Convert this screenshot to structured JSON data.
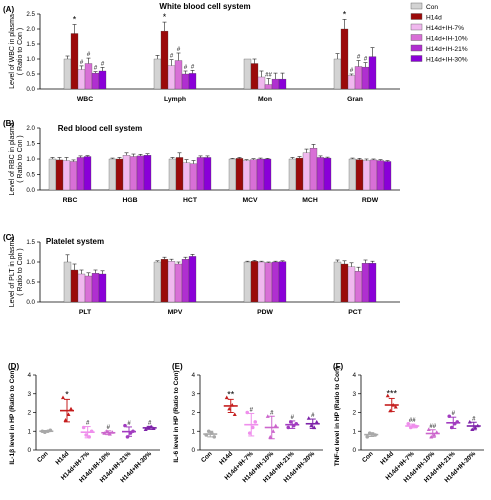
{
  "colors": {
    "con": "#d3d3d3",
    "h14d": "#9b0a0a",
    "ih7": "#f0b8ee",
    "ih10": "#d86fd6",
    "ih21": "#b02fd0",
    "ih30": "#8a00d8",
    "dot_con": "#a8a8a8",
    "dot_h14d": "#c51d1d",
    "dot_ih7": "#ef8fec",
    "dot_ih10": "#cc66cc",
    "dot_ih21": "#a23cc0",
    "dot_ih30": "#7d22a8"
  },
  "legend": [
    "Con",
    "H14d",
    "H14d+IH-7%",
    "H14d+IH-10%",
    "H14d+IH-21%",
    "H14d+IH-30%"
  ],
  "chart_data": [
    {
      "type": "bar",
      "panel": "(A)",
      "title": "White blood cell system",
      "ylabel": "Level of WBC in plasma\n( Ratio to Con )",
      "ylim": [
        0,
        2.5
      ],
      "yticks": [
        "0.0",
        "0.5",
        "1.0",
        "1.5",
        "2.0",
        "2.5"
      ],
      "categories": [
        "WBC",
        "Lymph",
        "Mon",
        "Gran"
      ],
      "series": [
        {
          "name": "Con",
          "values": [
            1.0,
            1.0,
            1.0,
            1.0
          ],
          "errors": [
            0.1,
            0.12,
            0.0,
            0.18
          ]
        },
        {
          "name": "H14d",
          "values": [
            1.85,
            1.93,
            0.85,
            2.0
          ],
          "errors": [
            0.3,
            0.3,
            0.15,
            0.32
          ]
        },
        {
          "name": "H14d+IH-7%",
          "values": [
            0.65,
            0.78,
            0.4,
            0.45
          ],
          "errors": [
            0.12,
            0.2,
            0.2,
            0.05
          ]
        },
        {
          "name": "H14d+IH-10%",
          "values": [
            0.85,
            0.95,
            0.15,
            0.75
          ],
          "errors": [
            0.18,
            0.25,
            0.2,
            0.2
          ]
        },
        {
          "name": "H14d+IH-21%",
          "values": [
            0.53,
            0.5,
            0.33,
            0.73
          ],
          "errors": [
            0.05,
            0.1,
            0.2,
            0.15
          ]
        },
        {
          "name": "H14d+IH-30%",
          "values": [
            0.6,
            0.52,
            0.33,
            1.08
          ],
          "errors": [
            0.12,
            0.1,
            0.2,
            0.3
          ]
        }
      ],
      "annotations": [
        {
          "category": 0,
          "series": 1,
          "text": "*"
        },
        {
          "category": 0,
          "series": 2,
          "text": "#"
        },
        {
          "category": 0,
          "series": 3,
          "text": "#"
        },
        {
          "category": 0,
          "series": 4,
          "text": "#"
        },
        {
          "category": 0,
          "series": 5,
          "text": "#"
        },
        {
          "category": 1,
          "series": 1,
          "text": "*"
        },
        {
          "category": 1,
          "series": 2,
          "text": "#"
        },
        {
          "category": 1,
          "series": 3,
          "text": "#"
        },
        {
          "category": 1,
          "series": 4,
          "text": "#"
        },
        {
          "category": 1,
          "series": 5,
          "text": "#"
        },
        {
          "category": 2,
          "series": 3,
          "text": "##"
        },
        {
          "category": 3,
          "series": 1,
          "text": "*"
        },
        {
          "category": 3,
          "series": 2,
          "text": "#"
        },
        {
          "category": 3,
          "series": 3,
          "text": "#"
        },
        {
          "category": 3,
          "series": 4,
          "text": "#"
        }
      ]
    },
    {
      "type": "bar",
      "panel": "(B)",
      "title": "Red blood  cell system",
      "ylabel": "Level of RBC in plasma\n( Ratio to Con )",
      "ylim": [
        0,
        2.0
      ],
      "yticks": [
        "0.0",
        "0.5",
        "1.0",
        "1.5",
        "2.0"
      ],
      "categories": [
        "RBC",
        "HGB",
        "HCT",
        "MCV",
        "MCH",
        "RDW"
      ],
      "series": [
        {
          "name": "Con",
          "values": [
            1.0,
            1.0,
            1.0,
            1.0,
            1.0,
            1.0
          ],
          "errors": [
            0.05,
            0.03,
            0.05,
            0.02,
            0.05,
            0.03
          ]
        },
        {
          "name": "H14d",
          "values": [
            0.97,
            1.0,
            1.05,
            1.02,
            1.03,
            0.98
          ],
          "errors": [
            0.08,
            0.05,
            0.15,
            0.03,
            0.05,
            0.04
          ]
        },
        {
          "name": "H14d+IH-7%",
          "values": [
            0.95,
            1.12,
            0.88,
            0.95,
            1.2,
            0.95
          ],
          "errors": [
            0.1,
            0.08,
            0.1,
            0.03,
            0.12,
            0.05
          ]
        },
        {
          "name": "H14d+IH-10%",
          "values": [
            0.92,
            1.08,
            0.85,
            0.98,
            1.35,
            0.97
          ],
          "errors": [
            0.05,
            0.08,
            0.1,
            0.03,
            0.12,
            0.03
          ]
        },
        {
          "name": "H14d+IH-21%",
          "values": [
            1.05,
            1.1,
            1.05,
            1.0,
            1.05,
            0.95
          ],
          "errors": [
            0.05,
            0.05,
            0.05,
            0.03,
            0.05,
            0.03
          ]
        },
        {
          "name": "H14d+IH-30%",
          "values": [
            1.08,
            1.12,
            1.05,
            1.0,
            1.03,
            0.92
          ],
          "errors": [
            0.03,
            0.05,
            0.05,
            0.02,
            0.03,
            0.03
          ]
        }
      ],
      "annotations": []
    },
    {
      "type": "bar",
      "panel": "(C)",
      "title": "Platelet system",
      "ylabel": "Level of PLT in plasma\n( Ratio to Con )",
      "ylim": [
        0,
        1.5
      ],
      "yticks": [
        "0.0",
        "0.5",
        "1.0",
        "1.5"
      ],
      "categories": [
        "PLT",
        "MPV",
        "PDW",
        "PCT"
      ],
      "series": [
        {
          "name": "Con",
          "values": [
            1.0,
            1.0,
            1.0,
            1.0
          ],
          "errors": [
            0.18,
            0.03,
            0.02,
            0.05
          ]
        },
        {
          "name": "H14d",
          "values": [
            0.8,
            1.07,
            1.02,
            0.95
          ],
          "errors": [
            0.15,
            0.05,
            0.02,
            0.08
          ]
        },
        {
          "name": "H14d+IH-7%",
          "values": [
            0.7,
            1.02,
            1.0,
            0.88
          ],
          "errors": [
            0.1,
            0.05,
            0.02,
            0.1
          ]
        },
        {
          "name": "H14d+IH-10%",
          "values": [
            0.65,
            0.95,
            0.98,
            0.77
          ],
          "errors": [
            0.08,
            0.05,
            0.02,
            0.1
          ]
        },
        {
          "name": "H14d+IH-21%",
          "values": [
            0.72,
            1.07,
            1.0,
            0.97
          ],
          "errors": [
            0.08,
            0.05,
            0.02,
            0.08
          ]
        },
        {
          "name": "H14d+IH-30%",
          "values": [
            0.7,
            1.14,
            1.01,
            0.97
          ],
          "errors": [
            0.08,
            0.05,
            0.02,
            0.05
          ]
        }
      ],
      "annotations": []
    },
    {
      "type": "scatter",
      "panel": "(D)",
      "ylabel": "IL-1β level in HP (Ratio to Con)",
      "ylim": [
        0,
        4
      ],
      "yticks": [
        "0",
        "1",
        "2",
        "3",
        "4"
      ],
      "categories": [
        "Con",
        "H14d",
        "H14d+IH-7%",
        "H14d+IH-10%",
        "H14d+IH-21%",
        "H14d+IH-30%"
      ],
      "groups": [
        {
          "points": [
            1.0,
            0.95,
            1.0,
            1.05
          ],
          "mean": 1.0,
          "sd": 0.04,
          "annotation": ""
        },
        {
          "points": [
            2.8,
            1.6,
            1.9,
            2.2
          ],
          "mean": 2.1,
          "sd": 0.6,
          "annotation": "*"
        },
        {
          "points": [
            1.2,
            0.8,
            0.7,
            1.0
          ],
          "mean": 0.95,
          "sd": 0.3,
          "annotation": "#"
        },
        {
          "points": [
            0.9,
            1.0,
            0.85,
            0.95
          ],
          "mean": 0.92,
          "sd": 0.1,
          "annotation": "#"
        },
        {
          "points": [
            1.3,
            0.7,
            0.9,
            1.0
          ],
          "mean": 0.98,
          "sd": 0.25,
          "annotation": "#"
        },
        {
          "points": [
            1.1,
            1.2,
            1.25,
            1.15
          ],
          "mean": 1.18,
          "sd": 0.08,
          "annotation": "#"
        }
      ]
    },
    {
      "type": "scatter",
      "panel": "(E)",
      "ylabel": "IL-6 level in HP (Ratio to Con)",
      "ylim": [
        0,
        4
      ],
      "yticks": [
        "0",
        "1",
        "2",
        "3",
        "4"
      ],
      "categories": [
        "Con",
        "H14d",
        "H14d+IH-7%",
        "H14d+IH-10%",
        "H14d+IH-21%",
        "H14d+IH-30%"
      ],
      "groups": [
        {
          "points": [
            0.8,
            1.0,
            0.9,
            0.7
          ],
          "mean": 0.85,
          "sd": 0.15,
          "annotation": ""
        },
        {
          "points": [
            2.8,
            2.2,
            2.4,
            1.9
          ],
          "mean": 2.35,
          "sd": 0.35,
          "annotation": "**"
        },
        {
          "points": [
            2.0,
            0.9,
            1.2,
            1.5
          ],
          "mean": 1.35,
          "sd": 0.6,
          "annotation": "#"
        },
        {
          "points": [
            1.8,
            0.7,
            1.0,
            1.3
          ],
          "mean": 1.2,
          "sd": 0.6,
          "annotation": "#"
        },
        {
          "points": [
            1.2,
            1.5,
            1.3,
            1.4
          ],
          "mean": 1.35,
          "sd": 0.2,
          "annotation": "#"
        },
        {
          "points": [
            1.7,
            1.3,
            1.2,
            1.5
          ],
          "mean": 1.4,
          "sd": 0.25,
          "annotation": "#"
        }
      ]
    },
    {
      "type": "scatter",
      "panel": "(F)",
      "ylabel": "TNF-α level in HP (Ratio to Con)",
      "ylim": [
        0,
        4
      ],
      "yticks": [
        "0",
        "1",
        "2",
        "3",
        "4"
      ],
      "categories": [
        "Con",
        "H14d",
        "H14d+IH-7%",
        "H14d+IH-10%",
        "H14d+IH-21%",
        "H14d+IH-30%"
      ],
      "groups": [
        {
          "points": [
            0.7,
            0.9,
            0.85,
            0.8
          ],
          "mean": 0.82,
          "sd": 0.1,
          "annotation": ""
        },
        {
          "points": [
            2.9,
            2.1,
            2.4,
            2.3
          ],
          "mean": 2.4,
          "sd": 0.35,
          "annotation": "***"
        },
        {
          "points": [
            1.4,
            1.2,
            1.3,
            1.25
          ],
          "mean": 1.28,
          "sd": 0.1,
          "annotation": "##"
        },
        {
          "points": [
            1.1,
            0.7,
            0.8,
            0.95
          ],
          "mean": 0.88,
          "sd": 0.2,
          "annotation": "##"
        },
        {
          "points": [
            1.8,
            1.2,
            1.4,
            1.5
          ],
          "mean": 1.45,
          "sd": 0.3,
          "annotation": "#"
        },
        {
          "points": [
            1.5,
            1.1,
            1.2,
            1.3
          ],
          "mean": 1.28,
          "sd": 0.2,
          "annotation": "#"
        }
      ]
    }
  ]
}
